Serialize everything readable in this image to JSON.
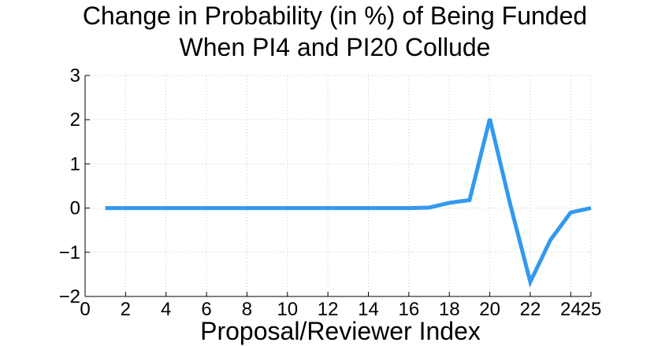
{
  "chart_data": {
    "type": "line",
    "title_lines": [
      "Change in Probability (in %) of Being Funded",
      "When PI4 and PI20 Collude"
    ],
    "xlabel": "Proposal/Reviewer Index",
    "ylabel": "",
    "xlim": [
      0,
      25
    ],
    "ylim": [
      -2,
      3
    ],
    "xticks": [
      0,
      2,
      4,
      6,
      8,
      10,
      12,
      14,
      16,
      18,
      20,
      22,
      24,
      25
    ],
    "yticks": [
      -2,
      -1,
      0,
      1,
      2,
      3
    ],
    "ytick_labels": [
      "−2",
      "−1",
      "0",
      "1",
      "2",
      "3"
    ],
    "grid": true,
    "series": [
      {
        "color": "#3399ee",
        "x": [
          1,
          2,
          3,
          4,
          5,
          6,
          7,
          8,
          9,
          10,
          11,
          12,
          13,
          14,
          15,
          16,
          17,
          18,
          19,
          20,
          21,
          22,
          23,
          24,
          25
        ],
        "y": [
          0,
          0,
          0,
          0,
          0,
          0,
          0,
          0,
          0,
          0,
          0,
          0,
          0,
          0,
          0,
          0,
          0.01,
          0.12,
          0.18,
          2.02,
          0.1,
          -1.67,
          -0.72,
          -0.1,
          0
        ]
      }
    ]
  }
}
